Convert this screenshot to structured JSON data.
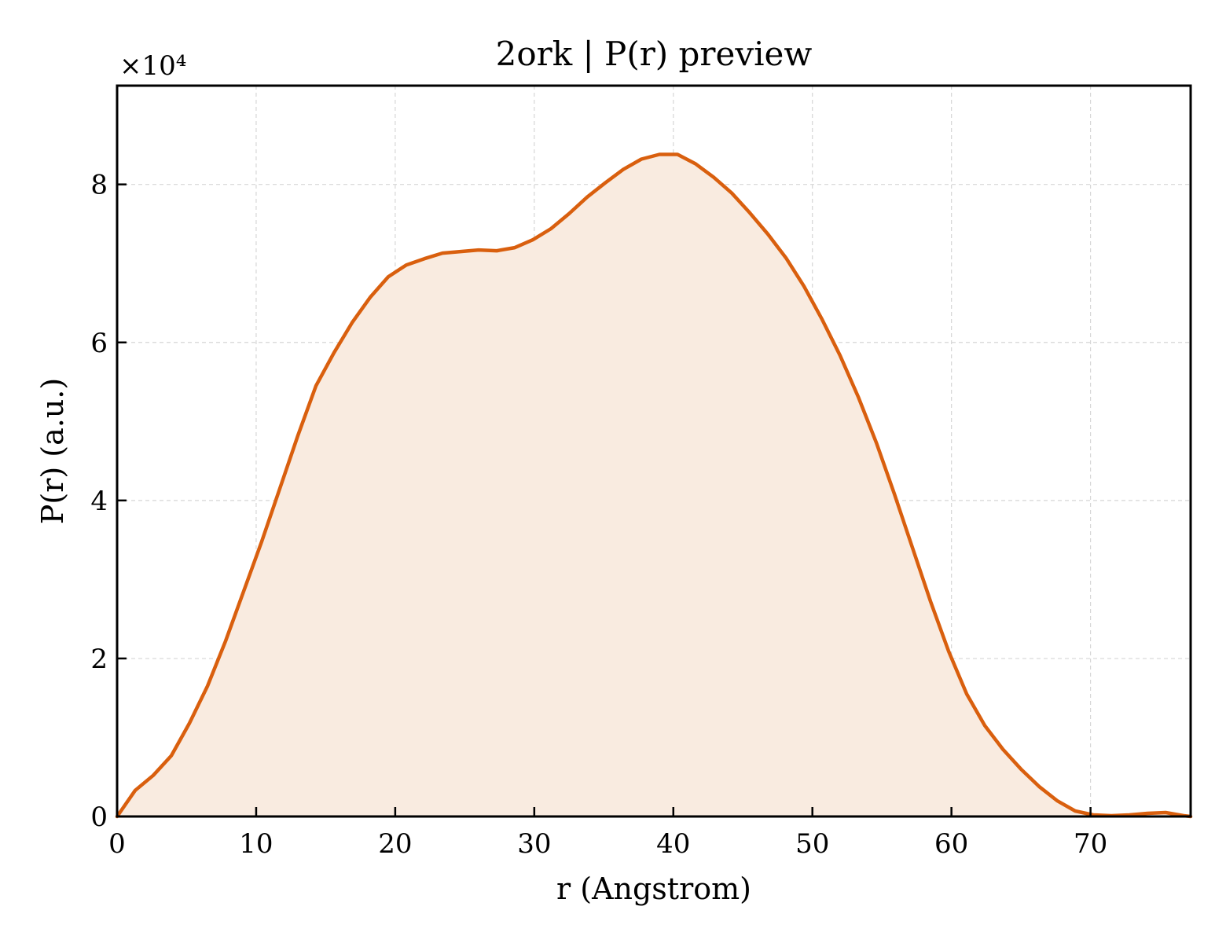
{
  "chart_data": {
    "type": "area",
    "title": "2ork | P(r) preview",
    "xlabel": "r (Angstrom)",
    "ylabel": "P(r) (a.u.)",
    "y_multiplier": "×10⁴",
    "xlim": [
      0,
      77.2
    ],
    "ylim": [
      0,
      9.25
    ],
    "x_ticks": [
      0,
      10,
      20,
      30,
      40,
      50,
      60,
      70
    ],
    "x_tick_labels": [
      "0",
      "10",
      "20",
      "30",
      "40",
      "50",
      "60",
      "70"
    ],
    "y_ticks": [
      0,
      2,
      4,
      6,
      8
    ],
    "y_tick_labels": [
      "0",
      "2",
      "4",
      "6",
      "8"
    ],
    "grid": true,
    "line_color": "#d95f0e",
    "fill_color": "#f9ebe0",
    "series": [
      {
        "x": [
          0,
          1.3,
          2.6,
          3.9,
          5.2,
          6.5,
          7.8,
          9.1,
          10.4,
          11.7,
          13.0,
          14.3,
          15.6,
          16.9,
          18.2,
          19.5,
          20.8,
          22.1,
          23.4,
          24.7,
          26.0,
          27.3,
          28.6,
          29.9,
          31.2,
          32.5,
          33.8,
          35.1,
          36.4,
          37.7,
          39.0,
          40.3,
          41.6,
          42.9,
          44.2,
          45.5,
          46.8,
          48.1,
          49.4,
          50.7,
          52.0,
          53.3,
          54.6,
          55.9,
          57.2,
          58.5,
          59.8,
          61.1,
          62.4,
          63.7,
          65.0,
          66.3,
          67.6,
          68.9,
          70.2,
          71.5,
          72.8,
          74.1,
          75.4,
          76.7,
          77.2
        ],
        "values": [
          0,
          0.33,
          0.52,
          0.77,
          1.18,
          1.65,
          2.22,
          2.85,
          3.48,
          4.15,
          4.82,
          5.45,
          5.87,
          6.25,
          6.57,
          6.83,
          6.98,
          7.06,
          7.13,
          7.15,
          7.17,
          7.16,
          7.2,
          7.3,
          7.44,
          7.63,
          7.84,
          8.02,
          8.19,
          8.32,
          8.38,
          8.38,
          8.26,
          8.09,
          7.89,
          7.64,
          7.37,
          7.07,
          6.71,
          6.29,
          5.83,
          5.31,
          4.73,
          4.08,
          3.4,
          2.72,
          2.09,
          1.55,
          1.15,
          0.85,
          0.6,
          0.38,
          0.2,
          0.07,
          0.02,
          0.01,
          0.02,
          0.04,
          0.05,
          0.01,
          0
        ]
      }
    ]
  }
}
